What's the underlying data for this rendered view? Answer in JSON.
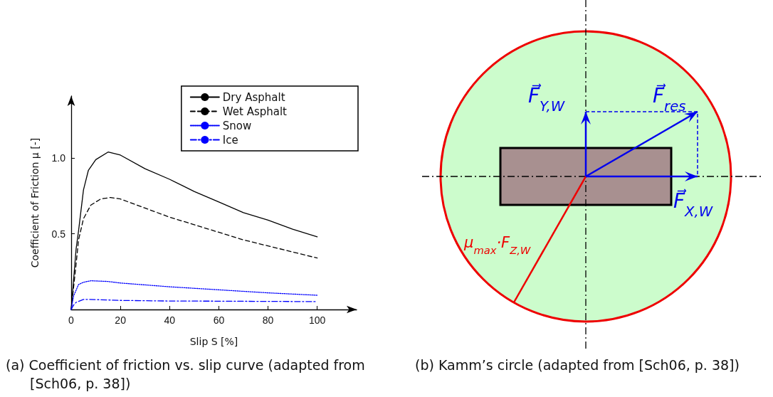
{
  "chart_data": [
    {
      "type": "line",
      "title": "(a) Coefficient of friction vs. slip curve (adapted from [Sch06, p. 38])",
      "xlabel": "Slip S [%]",
      "ylabel": "Coefficient of Friction μ [-]",
      "xlim": [
        0,
        116
      ],
      "ylim": [
        0,
        1.41
      ],
      "xticks": [
        0,
        20,
        40,
        60,
        80,
        100
      ],
      "yticks": [
        {
          "value": 0.5,
          "label": "0.5"
        },
        {
          "value": 1,
          "label": "1.0"
        }
      ],
      "grid": false,
      "legend": "top right",
      "marker": "none",
      "series": [
        {
          "name": "Dry Asphalt",
          "color": "#000000",
          "line_style": "solid",
          "x": [
            0,
            1,
            2,
            3,
            5,
            7,
            10,
            15,
            20,
            30,
            40,
            50,
            60,
            70,
            80,
            90,
            100
          ],
          "values": [
            0,
            0.2,
            0.4,
            0.52,
            0.79,
            0.92,
            0.99,
            1.04,
            1.02,
            0.93,
            0.86,
            0.78,
            0.71,
            0.64,
            0.59,
            0.53,
            0.48
          ]
        },
        {
          "name": "Wet Asphalt",
          "color": "#000000",
          "line_style": "dashed",
          "x": [
            0,
            1,
            2,
            3,
            5,
            8,
            12,
            16,
            20,
            30,
            40,
            50,
            60,
            70,
            80,
            90,
            100
          ],
          "values": [
            0,
            0.15,
            0.3,
            0.46,
            0.6,
            0.69,
            0.73,
            0.74,
            0.73,
            0.67,
            0.61,
            0.56,
            0.51,
            0.46,
            0.42,
            0.38,
            0.34
          ]
        },
        {
          "name": "Snow",
          "color": "#0000ff",
          "line_style": "dotted",
          "x": [
            0,
            1,
            3,
            5,
            8,
            15,
            20,
            40,
            60,
            80,
            100
          ],
          "values": [
            0,
            0.09,
            0.165,
            0.18,
            0.19,
            0.185,
            0.175,
            0.15,
            0.13,
            0.11,
            0.094
          ]
        },
        {
          "name": "Ice",
          "color": "#0000ff",
          "line_style": "dashdot",
          "x": [
            0,
            1,
            2,
            5,
            7,
            20,
            40,
            60,
            100
          ],
          "values": [
            0,
            0.03,
            0.047,
            0.066,
            0.067,
            0.06,
            0.056,
            0.055,
            0.052
          ]
        }
      ]
    },
    {
      "type": "other",
      "title": "(b) Kamm’s circle (adapted from [Sch06, p. 38])",
      "annotations": [
        "F⃗$_{Y,W}$",
        "F⃗$_{res}$",
        "F⃗$_{X,W}$",
        "μ$_{max}$·F$_{Z,W}$"
      ]
    }
  ]
}
